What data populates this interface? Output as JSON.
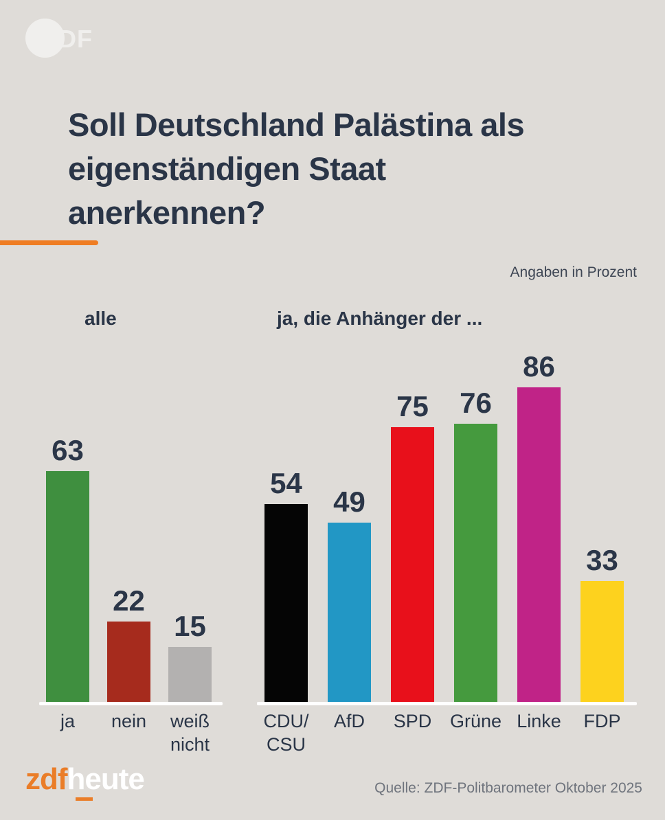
{
  "watermark": {
    "text": "2DF"
  },
  "title": {
    "line1": "Soll Deutschland Palästina als",
    "line2": "eigenständigen Staat",
    "line3": "anerkennen?"
  },
  "chart_data": {
    "type": "bar",
    "unit_note": "Angaben in Prozent",
    "ylim": [
      0,
      100
    ],
    "grid": false,
    "legend": "none",
    "groups": [
      {
        "label": "alle",
        "categories": [
          "ja",
          "nein",
          "weiß\nnicht"
        ],
        "values": [
          63,
          22,
          15
        ],
        "colors": [
          "#3f8f3f",
          "#a62b1d",
          "#b3b1b0"
        ]
      },
      {
        "label": "ja, die Anhänger der ...",
        "categories": [
          "CDU/\nCSU",
          "AfD",
          "SPD",
          "Grüne",
          "Linke",
          "FDP"
        ],
        "values": [
          54,
          49,
          75,
          76,
          86,
          33
        ],
        "colors": [
          "#050505",
          "#2297c5",
          "#e8101b",
          "#459a3e",
          "#c02387",
          "#fdd21e"
        ]
      }
    ]
  },
  "footer": {
    "logo_zdf": "zdf",
    "logo_heute": "heute",
    "source": "Quelle: ZDF-Politbarometer Oktober 2025"
  },
  "colors": {
    "background": "#dfdcd8",
    "title_navy": "#2a3547",
    "value_navy": "#2b3648",
    "accent_orange": "#ef7d23",
    "logo_orange": "#ea7d28",
    "baseline_white": "#ffffff",
    "source_gray": "#6f747d"
  }
}
